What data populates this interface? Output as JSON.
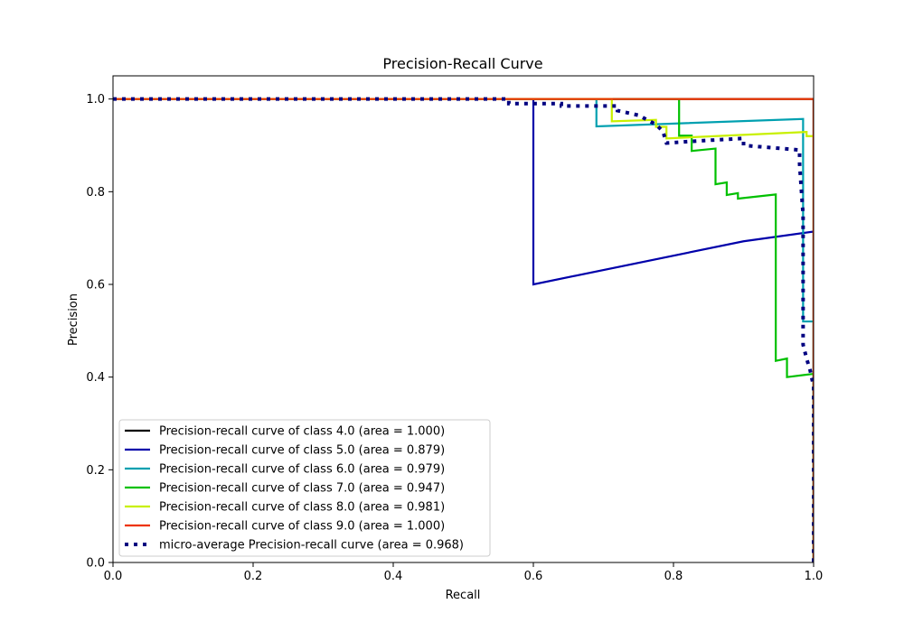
{
  "chart_data": {
    "type": "line",
    "title": "Precision-Recall Curve",
    "xlabel": "Recall",
    "ylabel": "Precision",
    "xlim": [
      0.0,
      1.0
    ],
    "ylim": [
      0.0,
      1.05
    ],
    "xticks": [
      "0.0",
      "0.2",
      "0.4",
      "0.6",
      "0.8",
      "1.0"
    ],
    "yticks": [
      "0.0",
      "0.2",
      "0.4",
      "0.6",
      "0.8",
      "1.0"
    ],
    "grid": false,
    "legend_position": "lower-left",
    "series": [
      {
        "name": "Precision-recall curve of class 4.0 (area = 1.000)",
        "color": "#000000",
        "style": "solid",
        "points": [
          [
            0,
            1.0
          ],
          [
            1.0,
            1.0
          ],
          [
            1.0,
            0.0
          ]
        ]
      },
      {
        "name": "Precision-recall curve of class 5.0 (area = 0.879)",
        "color": "#0000aa",
        "style": "solid",
        "points": [
          [
            0,
            1.0
          ],
          [
            0.6,
            1.0
          ],
          [
            0.6,
            0.6
          ],
          [
            0.9,
            0.693
          ],
          [
            1.0,
            0.714
          ],
          [
            1.0,
            0.067
          ]
        ]
      },
      {
        "name": "Precision-recall curve of class 6.0 (area = 0.979)",
        "color": "#00a0b0",
        "style": "solid",
        "points": [
          [
            0,
            1.0
          ],
          [
            0.69,
            1.0
          ],
          [
            0.69,
            0.941
          ],
          [
            0.985,
            0.957
          ],
          [
            0.985,
            0.52
          ],
          [
            1.0,
            0.52
          ],
          [
            1.0,
            0.0
          ]
        ]
      },
      {
        "name": "Precision-recall curve of class 7.0 (area = 0.947)",
        "color": "#00c000",
        "style": "solid",
        "points": [
          [
            0,
            1.0
          ],
          [
            0.808,
            1.0
          ],
          [
            0.808,
            0.921
          ],
          [
            0.826,
            0.921
          ],
          [
            0.826,
            0.888
          ],
          [
            0.86,
            0.893
          ],
          [
            0.86,
            0.816
          ],
          [
            0.876,
            0.82
          ],
          [
            0.876,
            0.793
          ],
          [
            0.892,
            0.797
          ],
          [
            0.892,
            0.785
          ],
          [
            0.946,
            0.794
          ],
          [
            0.946,
            0.435
          ],
          [
            0.962,
            0.44
          ],
          [
            0.962,
            0.4
          ],
          [
            1.0,
            0.407
          ],
          [
            1.0,
            0.0
          ]
        ]
      },
      {
        "name": "Precision-recall curve of class 8.0 (area = 0.981)",
        "color": "#c8f000",
        "style": "solid",
        "points": [
          [
            0,
            1.0
          ],
          [
            0.712,
            1.0
          ],
          [
            0.712,
            0.952
          ],
          [
            0.775,
            0.955
          ],
          [
            0.775,
            0.94
          ],
          [
            0.79,
            0.94
          ],
          [
            0.79,
            0.915
          ],
          [
            0.99,
            0.929
          ],
          [
            0.99,
            0.92
          ],
          [
            1.0,
            0.92
          ],
          [
            1.0,
            0.0
          ]
        ]
      },
      {
        "name": "Precision-recall curve of class 9.0 (area = 1.000)",
        "color": "#ee3300",
        "style": "solid",
        "points": [
          [
            0,
            1.0
          ],
          [
            1.0,
            1.0
          ],
          [
            1.0,
            0.0
          ]
        ]
      },
      {
        "name": "micro-average Precision-recall curve (area = 0.968)",
        "color": "#000080",
        "style": "dotted",
        "points": [
          [
            0,
            1.0
          ],
          [
            0.565,
            1.0
          ],
          [
            0.565,
            0.99
          ],
          [
            0.64,
            0.99
          ],
          [
            0.64,
            0.985
          ],
          [
            0.72,
            0.985
          ],
          [
            0.72,
            0.975
          ],
          [
            0.75,
            0.965
          ],
          [
            0.775,
            0.945
          ],
          [
            0.785,
            0.93
          ],
          [
            0.79,
            0.905
          ],
          [
            0.84,
            0.91
          ],
          [
            0.9,
            0.915
          ],
          [
            0.9,
            0.9
          ],
          [
            0.94,
            0.895
          ],
          [
            0.98,
            0.89
          ],
          [
            0.98,
            0.86
          ],
          [
            0.985,
            0.75
          ],
          [
            0.985,
            0.47
          ],
          [
            0.99,
            0.44
          ],
          [
            0.995,
            0.415
          ],
          [
            1.0,
            0.38
          ],
          [
            1.0,
            0.0
          ]
        ]
      }
    ]
  }
}
